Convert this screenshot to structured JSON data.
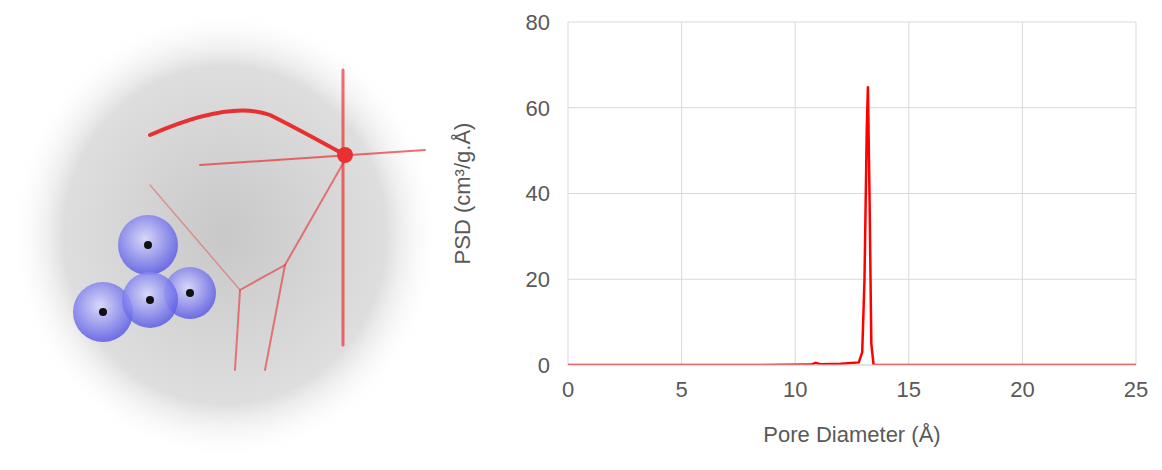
{
  "chart_data": {
    "type": "line",
    "x_label": "Pore Diameter (Å)",
    "y_label": "PSD (cm³/g.Å)",
    "x": [
      0,
      5,
      8,
      10.7,
      10.9,
      11.1,
      12,
      12.8,
      12.95,
      13.05,
      13.15,
      13.2,
      13.27,
      13.35,
      13.45,
      15,
      20,
      25
    ],
    "values": [
      0,
      0,
      0,
      0.1,
      0.5,
      0.2,
      0.3,
      0.6,
      3,
      20,
      55,
      65,
      40,
      5,
      0,
      0,
      0,
      0
    ],
    "color": "#ff0000",
    "xlim": [
      0,
      25
    ],
    "xticks": [
      0,
      5,
      10,
      15,
      20,
      25
    ],
    "ylim": [
      0,
      80
    ],
    "yticks": [
      0,
      20,
      40,
      60,
      80
    ],
    "grid": true
  }
}
